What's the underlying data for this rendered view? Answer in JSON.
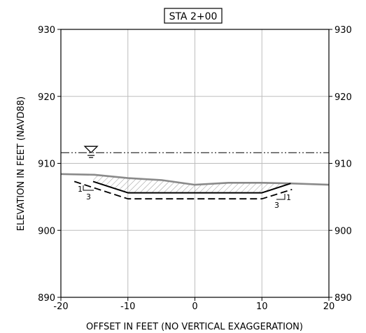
{
  "chart_data": {
    "type": "line",
    "title": "STA 2+00",
    "xlabel": "OFFSET IN FEET (NO VERTICAL EXAGGERATION)",
    "ylabel": "ELEVATION IN FEET (NAVD88)",
    "xlim": [
      -20,
      20
    ],
    "ylim": [
      890,
      930
    ],
    "x_ticks": [
      -20,
      -10,
      0,
      10,
      20
    ],
    "x_tick_labels": [
      "-20",
      "-10",
      "0",
      "10",
      "20"
    ],
    "y_ticks": [
      890,
      900,
      910,
      920,
      930
    ],
    "y_tick_labels": [
      "890",
      "900",
      "910",
      "920",
      "930"
    ],
    "right_y_tick_labels": [
      "890",
      "900",
      "910",
      "920",
      "930"
    ],
    "grid": true,
    "series": [
      {
        "style": "gray-solid",
        "x": [
          -20,
          -15,
          -10,
          -5,
          0,
          5,
          10,
          14.3,
          20
        ],
        "y": [
          908.4,
          908.3,
          907.8,
          907.5,
          906.8,
          907.1,
          907.1,
          907.0,
          906.8
        ]
      },
      {
        "style": "black-solid",
        "x": [
          -15.2,
          -10,
          10,
          14.3
        ],
        "y": [
          907.3,
          905.6,
          905.6,
          907.0
        ]
      },
      {
        "style": "black-dashed",
        "x": [
          -18,
          -10,
          10,
          14.5
        ],
        "y": [
          907.3,
          904.7,
          904.7,
          906.1
        ]
      },
      {
        "style": "dash-dot-dot",
        "x": [
          -20,
          20
        ],
        "y": [
          911.6,
          911.6
        ]
      }
    ],
    "water_marker": {
      "x": -15.5,
      "y": 911.6
    },
    "slope_left": {
      "rise": "1",
      "run": "3"
    },
    "slope_right": {
      "rise": "1",
      "run": "3"
    },
    "colors": {
      "ground": "#8a8a8a",
      "design": "#000000",
      "grid": "#bdbdbd",
      "hatch": "#9a9a9a"
    }
  }
}
